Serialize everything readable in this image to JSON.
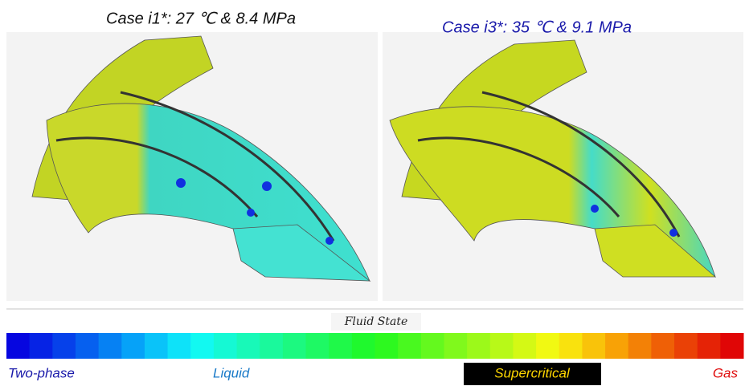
{
  "panels": [
    {
      "title": "Case i1*: 27 ℃ & 8.4 MPa"
    },
    {
      "title": "Case i3*: 35 ℃ & 9.1 MPa"
    }
  ],
  "colorbar": {
    "title": "Fluid State",
    "labels": [
      "Two-phase",
      "Liquid",
      "Supercritical",
      "Gas"
    ]
  }
}
